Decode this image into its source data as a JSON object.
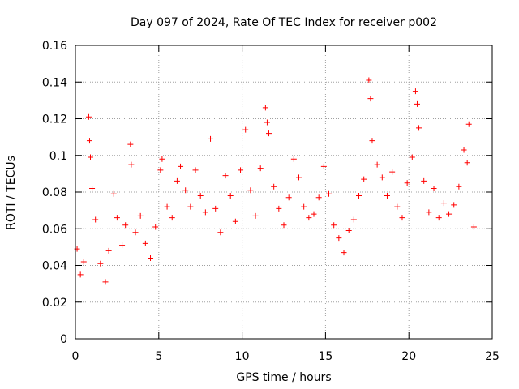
{
  "chart_data": {
    "type": "scatter",
    "title": "Day 097 of 2024, Rate Of TEC Index for receiver p002",
    "xlabel": "GPS time / hours",
    "ylabel": "ROTI / TECUs",
    "xlim": [
      0,
      25
    ],
    "ylim": [
      0,
      0.16
    ],
    "x_ticks": [
      0,
      5,
      10,
      15,
      20,
      25
    ],
    "x_tick_labels": [
      "0",
      "5",
      "10",
      "15",
      "20",
      "25"
    ],
    "y_ticks": [
      0,
      0.02,
      0.04,
      0.06,
      0.08,
      0.1,
      0.12,
      0.14,
      0.16
    ],
    "y_tick_labels": [
      "0",
      "0.02",
      "0.04",
      "0.06",
      "0.08",
      "0.1",
      "0.12",
      "0.14",
      "0.16"
    ],
    "grid": true,
    "marker": "+",
    "color": "#ff0000",
    "series": [
      {
        "x": [
          0.1,
          0.3,
          0.5,
          0.8,
          0.85,
          0.9,
          1.0,
          1.2,
          1.5,
          1.8,
          2.0,
          2.3,
          2.5,
          2.8,
          3.0,
          3.3,
          3.35,
          3.6,
          3.9,
          4.2,
          4.5,
          4.8,
          5.1,
          5.2,
          5.5,
          5.8,
          6.1,
          6.3,
          6.6,
          6.9,
          7.2,
          7.5,
          7.8,
          8.1,
          8.4,
          8.7,
          9.0,
          9.3,
          9.6,
          9.9,
          10.2,
          10.5,
          10.8,
          11.1,
          11.4,
          11.5,
          11.6,
          11.9,
          12.2,
          12.5,
          12.8,
          13.1,
          13.4,
          13.7,
          14.0,
          14.3,
          14.6,
          14.9,
          15.2,
          15.5,
          15.8,
          16.1,
          16.4,
          16.7,
          17.0,
          17.3,
          17.6,
          17.7,
          17.8,
          18.1,
          18.4,
          18.7,
          19.0,
          19.3,
          19.6,
          19.9,
          20.2,
          20.4,
          20.5,
          20.6,
          20.9,
          21.2,
          21.5,
          21.8,
          22.1,
          22.4,
          22.7,
          23.0,
          23.3,
          23.5,
          23.6,
          23.9
        ],
        "y": [
          0.049,
          0.035,
          0.042,
          0.121,
          0.108,
          0.099,
          0.082,
          0.065,
          0.041,
          0.031,
          0.048,
          0.079,
          0.066,
          0.051,
          0.062,
          0.106,
          0.095,
          0.058,
          0.067,
          0.052,
          0.044,
          0.061,
          0.092,
          0.098,
          0.072,
          0.066,
          0.086,
          0.094,
          0.081,
          0.072,
          0.092,
          0.078,
          0.069,
          0.109,
          0.071,
          0.058,
          0.089,
          0.078,
          0.064,
          0.092,
          0.114,
          0.081,
          0.067,
          0.093,
          0.126,
          0.118,
          0.112,
          0.083,
          0.071,
          0.062,
          0.077,
          0.098,
          0.088,
          0.072,
          0.066,
          0.068,
          0.077,
          0.094,
          0.079,
          0.062,
          0.055,
          0.047,
          0.059,
          0.065,
          0.078,
          0.087,
          0.141,
          0.131,
          0.108,
          0.095,
          0.088,
          0.078,
          0.091,
          0.072,
          0.066,
          0.085,
          0.099,
          0.135,
          0.128,
          0.115,
          0.086,
          0.069,
          0.082,
          0.066,
          0.074,
          0.068,
          0.073,
          0.083,
          0.103,
          0.096,
          0.117,
          0.061
        ]
      }
    ]
  }
}
